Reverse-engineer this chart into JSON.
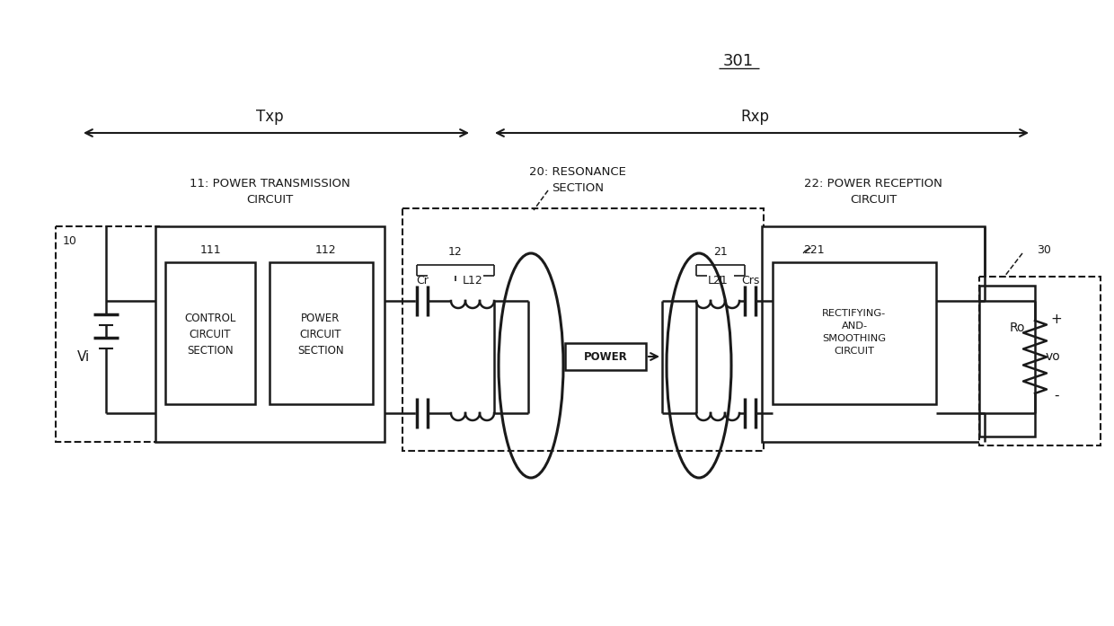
{
  "bg": "#ffffff",
  "lc": "#1a1a1a",
  "fig_label": "301",
  "txp": "Txp",
  "rxp": "Rxp",
  "label_11": "11: POWER TRANSMISSION\nCIRCUIT",
  "label_20": "20: RESONANCE\nSECTION",
  "label_22": "22: POWER RECEPTION\nCIRCUIT",
  "l111": "111",
  "l112": "112",
  "l10": "10",
  "l30": "30",
  "lvi": "Vi",
  "l12": "12",
  "l21": "21",
  "lCr": "Cr",
  "lL12": "L12",
  "lL21": "L21",
  "lCrs": "Crs",
  "l221": "221",
  "lRo": "Ro",
  "lvo": "vo",
  "lplus": "+",
  "lminus": "-",
  "lpower": "POWER",
  "ctrl_lbl": "CONTROL\nCIRCUIT\nSECTION",
  "pwr_lbl": "POWER\nCIRCUIT\nSECTION",
  "rect_lbl": "RECTIFYING-\nAND-\nSMOOTHING\nCIRCUIT"
}
